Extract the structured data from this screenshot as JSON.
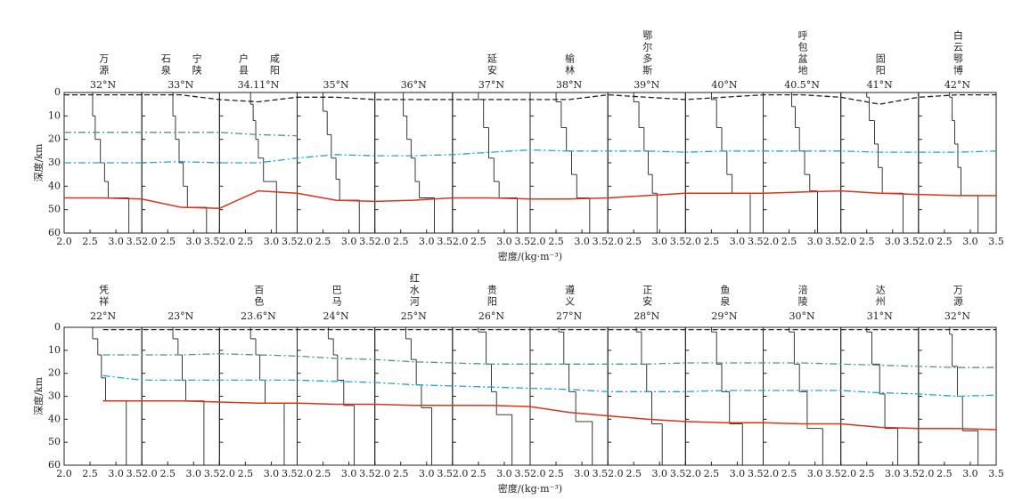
{
  "chart_data": [
    {
      "type": "line",
      "ylabel": "深度/km",
      "xlabel": "密度/(kg·m⁻³)",
      "xlim": [
        2.0,
        3.5
      ],
      "xticks": [
        {
          "value": 2,
          "label": "2.0"
        },
        2.5,
        {
          "value": 3,
          "label": "3.0"
        },
        3.5
      ],
      "ylim": [
        0,
        60
      ],
      "yticks": [
        0,
        10,
        20,
        30,
        40,
        50,
        60
      ],
      "y_inverted": true,
      "panels": [
        {
          "title": "32°N",
          "places": [
            "万源"
          ],
          "top": [
            0,
            10,
            20,
            30,
            38,
            45
          ],
          "density": [
            2.55,
            2.6,
            2.7,
            2.78,
            2.85,
            3.25
          ]
        },
        {
          "title": "33°N",
          "places": [
            "石泉",
            "宁陕"
          ],
          "top": [
            0,
            10,
            20,
            30,
            40,
            49
          ],
          "density": [
            2.6,
            2.65,
            2.72,
            2.8,
            2.88,
            3.25
          ]
        },
        {
          "title": "34.11°N",
          "places": [
            "户县",
            "咸阳"
          ],
          "top": [
            0,
            5,
            12,
            20,
            28,
            38
          ],
          "density": [
            2.6,
            2.65,
            2.7,
            2.75,
            2.85,
            3.1
          ]
        },
        {
          "title": "35°N",
          "places": [],
          "top": [
            0,
            8,
            18,
            28,
            37,
            46
          ],
          "density": [
            2.5,
            2.58,
            2.66,
            2.75,
            2.82,
            3.2
          ]
        },
        {
          "title": "36°N",
          "places": [],
          "top": [
            0,
            10,
            20,
            28,
            38,
            45
          ],
          "density": [
            2.55,
            2.62,
            2.7,
            2.78,
            2.86,
            3.15
          ]
        },
        {
          "title": "37°N",
          "places": [
            "延安"
          ],
          "top": [
            0,
            3,
            15,
            28,
            38,
            45
          ],
          "density": [
            2.5,
            2.6,
            2.7,
            2.8,
            2.9,
            3.25
          ]
        },
        {
          "title": "38°N",
          "places": [
            "榆林"
          ],
          "top": [
            0,
            4,
            15,
            25,
            35,
            45
          ],
          "density": [
            2.5,
            2.6,
            2.7,
            2.8,
            2.9,
            3.15
          ]
        },
        {
          "title": "39°N",
          "places": [
            "鄂尔多斯"
          ],
          "top": [
            0,
            4,
            15,
            25,
            35,
            43
          ],
          "density": [
            2.5,
            2.6,
            2.7,
            2.78,
            2.86,
            2.95
          ]
        },
        {
          "title": "40°N",
          "places": [],
          "top": [
            0,
            3,
            15,
            25,
            35,
            43
          ],
          "density": [
            2.5,
            2.6,
            2.7,
            2.8,
            2.9,
            3.25
          ]
        },
        {
          "title": "40.5°N",
          "places": [
            "呼包盆地"
          ],
          "top": [
            0,
            6,
            15,
            25,
            35,
            42
          ],
          "density": [
            2.55,
            2.62,
            2.7,
            2.8,
            2.9,
            3.05
          ]
        },
        {
          "title": "41°N",
          "places": [
            "固阳"
          ],
          "top": [
            0,
            2,
            12,
            22,
            32,
            43
          ],
          "density": [
            2.5,
            2.55,
            2.65,
            2.72,
            2.8,
            3.2
          ]
        },
        {
          "title": "42°N",
          "places": [
            "白云鄂博"
          ],
          "top": [
            0,
            2,
            12,
            22,
            32,
            44
          ],
          "density": [
            2.6,
            2.65,
            2.7,
            2.76,
            2.82,
            3.15
          ]
        }
      ],
      "series": [
        {
          "color": "#222222",
          "style": "dashed",
          "values": [
            1,
            1,
            1,
            1,
            3,
            4,
            2,
            2,
            3,
            3,
            3,
            3,
            3,
            3,
            1,
            2,
            3,
            2,
            1,
            1,
            2,
            5,
            2,
            1,
            1
          ]
        },
        {
          "color": "#4f9a78",
          "style": "dashdot",
          "values": [
            17,
            17,
            17,
            17,
            17,
            18,
            18.5,
            null,
            null,
            null,
            null,
            null,
            null,
            null,
            null,
            null,
            null,
            null,
            null,
            null,
            null,
            null,
            null,
            null,
            null
          ]
        },
        {
          "color": "#1ea5d6",
          "style": "dashdot",
          "values": [
            30,
            30,
            30,
            29.5,
            30,
            30,
            28,
            26.5,
            27,
            27,
            26.5,
            25.5,
            24.5,
            25,
            25,
            25,
            25.5,
            25,
            25,
            25,
            25,
            25.5,
            25.5,
            25.5,
            25
          ]
        },
        {
          "color": "#e0301e",
          "style": "solid",
          "values": [
            45,
            45,
            45.5,
            49,
            49.5,
            42,
            43,
            46,
            46.5,
            46,
            45,
            45,
            45.5,
            45.5,
            45,
            44,
            43,
            43,
            43,
            42.5,
            42,
            43,
            43.5,
            44,
            44
          ]
        }
      ]
    },
    {
      "type": "line",
      "ylabel": "深度/km",
      "xlabel": "密度/(kg·m⁻³)",
      "xlim": [
        2.0,
        3.5
      ],
      "xticks": [
        {
          "value": 2,
          "label": "2.0"
        },
        2.5,
        {
          "value": 3,
          "label": "3.0"
        },
        3.5
      ],
      "ylim": [
        0,
        60
      ],
      "yticks": [
        0,
        10,
        20,
        30,
        40,
        50,
        60
      ],
      "y_inverted": true,
      "panels": [
        {
          "title": "22°N",
          "places": [
            "凭祥"
          ],
          "top": [
            0,
            5,
            12,
            22,
            32
          ],
          "density": [
            2.55,
            2.65,
            2.72,
            2.8,
            3.2
          ]
        },
        {
          "title": "23°N",
          "places": [],
          "top": [
            0,
            5,
            12,
            23,
            32
          ],
          "density": [
            2.6,
            2.7,
            2.78,
            2.85,
            3.2
          ]
        },
        {
          "title": "23.6°N",
          "places": [
            "百色"
          ],
          "top": [
            0,
            5,
            12,
            23,
            33
          ],
          "density": [
            2.6,
            2.7,
            2.78,
            2.88,
            3.25
          ]
        },
        {
          "title": "24°N",
          "places": [
            "巴马"
          ],
          "top": [
            0,
            5,
            12,
            23,
            34
          ],
          "density": [
            2.6,
            2.7,
            2.78,
            2.9,
            3.1
          ]
        },
        {
          "title": "25°N",
          "places": [
            "红水河"
          ],
          "top": [
            0,
            5,
            14,
            25,
            35
          ],
          "density": [
            2.6,
            2.7,
            2.8,
            2.9,
            3.1
          ]
        },
        {
          "title": "26°N",
          "places": [
            "贵阳"
          ],
          "top": [
            0,
            2,
            16,
            28,
            38
          ],
          "density": [
            2.5,
            2.65,
            2.75,
            2.85,
            3.15
          ]
        },
        {
          "title": "27°N",
          "places": [
            "遵义"
          ],
          "top": [
            0,
            2,
            16,
            28,
            41
          ],
          "density": [
            2.55,
            2.65,
            2.75,
            2.88,
            3.2
          ]
        },
        {
          "title": "28°N",
          "places": [
            "正安"
          ],
          "top": [
            0,
            2,
            16,
            28,
            42
          ],
          "density": [
            2.55,
            2.65,
            2.75,
            2.85,
            3.05
          ]
        },
        {
          "title": "29°N",
          "places": [
            "鱼泉"
          ],
          "top": [
            0,
            2,
            16,
            28,
            42
          ],
          "density": [
            2.5,
            2.6,
            2.7,
            2.85,
            3.1
          ]
        },
        {
          "title": "30°N",
          "places": [
            "涪陵"
          ],
          "top": [
            0,
            2,
            16,
            28,
            44
          ],
          "density": [
            2.5,
            2.6,
            2.7,
            2.85,
            3.15
          ]
        },
        {
          "title": "31°N",
          "places": [
            "达州"
          ],
          "top": [
            0,
            2,
            16,
            29,
            44
          ],
          "density": [
            2.5,
            2.6,
            2.75,
            2.85,
            3.1
          ]
        },
        {
          "title": "32°N",
          "places": [
            "万源"
          ],
          "top": [
            0,
            3,
            17,
            30,
            45
          ],
          "density": [
            2.6,
            2.65,
            2.75,
            2.85,
            3.15
          ]
        }
      ],
      "series": [
        {
          "color": "#222222",
          "style": "dashed",
          "values": [
            null,
            1,
            1,
            1,
            1,
            1,
            1,
            1,
            1,
            1,
            1,
            1,
            1,
            1,
            1,
            1,
            1,
            1,
            1,
            1,
            1,
            1,
            1,
            1,
            1
          ]
        },
        {
          "color": "#4f9a78",
          "style": "dashdot",
          "values": [
            null,
            12,
            12,
            12,
            11.5,
            12,
            12.5,
            13.5,
            14,
            15,
            15.5,
            16,
            16,
            16,
            16,
            16,
            15.5,
            15.5,
            15.5,
            15.5,
            16,
            16.5,
            17,
            17.5,
            17.5
          ]
        },
        {
          "color": "#1ea5d6",
          "style": "dashdot",
          "values": [
            null,
            21,
            23,
            23,
            23,
            23,
            23,
            23.5,
            24,
            25,
            25.5,
            26,
            26.5,
            27,
            28,
            28,
            28,
            27.5,
            27.5,
            27.5,
            27.5,
            28.5,
            29,
            30,
            29.5
          ]
        },
        {
          "color": "#e0301e",
          "style": "solid",
          "values": [
            null,
            32,
            32,
            32,
            32.5,
            33,
            33,
            33.5,
            33.5,
            34,
            34,
            34,
            34.5,
            37,
            38.5,
            40,
            41,
            41.5,
            41.5,
            42,
            42,
            43.5,
            44,
            44,
            44.5
          ]
        }
      ]
    }
  ]
}
